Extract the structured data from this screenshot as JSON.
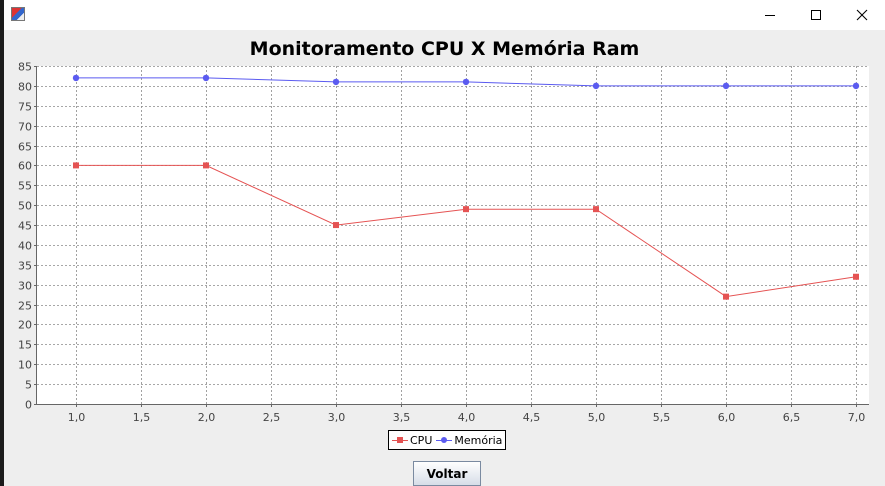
{
  "window": {
    "controls": [
      {
        "name": "minimize",
        "icon": "minimize-icon"
      },
      {
        "name": "maximize",
        "icon": "maximize-icon"
      },
      {
        "name": "close",
        "icon": "close-icon"
      }
    ],
    "app_icon": "java-app-icon"
  },
  "chart_data": {
    "type": "line",
    "title": "Monitoramento CPU X Memória Ram",
    "xlabel": "",
    "ylabel": "",
    "xlim": [
      0.7,
      7.1
    ],
    "ylim": [
      0,
      85
    ],
    "x_ticks": [
      "1,0",
      "1,5",
      "2,0",
      "2,5",
      "3,0",
      "3,5",
      "4,0",
      "4,5",
      "5,0",
      "5,5",
      "6,0",
      "6,5",
      "7,0"
    ],
    "x_tick_values": [
      1.0,
      1.5,
      2.0,
      2.5,
      3.0,
      3.5,
      4.0,
      4.5,
      5.0,
      5.5,
      6.0,
      6.5,
      7.0
    ],
    "y_ticks": [
      "0",
      "5",
      "10",
      "15",
      "20",
      "25",
      "30",
      "35",
      "40",
      "45",
      "50",
      "55",
      "60",
      "65",
      "70",
      "75",
      "80",
      "85"
    ],
    "y_tick_values": [
      0,
      5,
      10,
      15,
      20,
      25,
      30,
      35,
      40,
      45,
      50,
      55,
      60,
      65,
      70,
      75,
      80,
      85
    ],
    "grid": true,
    "legend_position": "bottom",
    "series": [
      {
        "name": "CPU",
        "color": "#e55353",
        "marker": "square",
        "x": [
          1,
          2,
          3,
          4,
          5,
          6,
          7
        ],
        "values": [
          60,
          60,
          45,
          49,
          49,
          27,
          32
        ]
      },
      {
        "name": "Memória",
        "color": "#5b5bf0",
        "marker": "circle",
        "x": [
          1,
          2,
          3,
          4,
          5,
          6,
          7
        ],
        "values": [
          82,
          82,
          81,
          81,
          80,
          80,
          80
        ]
      }
    ]
  },
  "buttons": {
    "voltar_label": "Voltar"
  }
}
